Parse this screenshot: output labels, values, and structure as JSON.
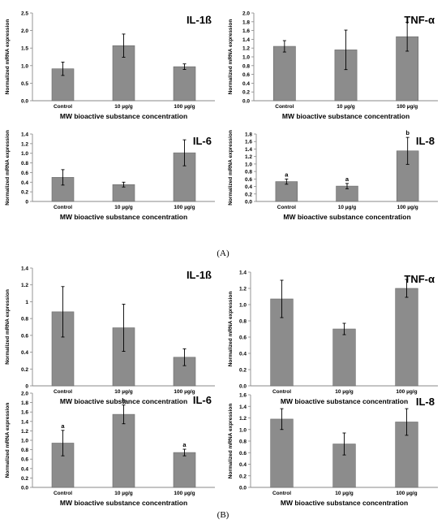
{
  "panel_labels": {
    "a": "(A)",
    "b": "(B)"
  },
  "colors": {
    "bar": "#8c8c8c",
    "bar_stroke": "#6a6a6a",
    "axis": "#888888",
    "text": "#000000"
  },
  "chart_data": [
    {
      "type": "bar",
      "panel": "A",
      "title": "IL-1ß",
      "ylabel": "Normalized mRNA expression",
      "xlabel": "MW bioactive substance concentration",
      "categories": [
        "Control",
        "10 µg/g",
        "100 µg/g"
      ],
      "values": [
        0.91,
        1.57,
        0.97
      ],
      "errors": [
        0.19,
        0.33,
        0.08
      ],
      "significance": [
        "",
        "",
        ""
      ],
      "ylim": [
        0,
        2.5
      ],
      "yticks": [
        "0.0",
        "0.5",
        "1.0",
        "1.5",
        "2.0",
        "2.5"
      ]
    },
    {
      "type": "bar",
      "panel": "A",
      "title": "TNF-α",
      "ylabel": "Normalized mRNA expression",
      "xlabel": "MW bioactive substance concentration",
      "categories": [
        "Control",
        "10 µg/g",
        "100 µg/g"
      ],
      "values": [
        1.24,
        1.16,
        1.46
      ],
      "errors": [
        0.13,
        0.45,
        0.33
      ],
      "significance": [
        "",
        "",
        ""
      ],
      "ylim": [
        0,
        2.0
      ],
      "yticks": [
        "0.0",
        "0.2",
        "0.4",
        "0.6",
        "0.8",
        "1.0",
        "1.2",
        "1.4",
        "1.6",
        "1.8",
        "2.0"
      ]
    },
    {
      "type": "bar",
      "panel": "A",
      "title": "IL-6",
      "ylabel": "Normalized mRNA expression",
      "xlabel": "MW bioactive substance concentration",
      "categories": [
        "Control",
        "10 µg/g",
        "100 µg/g"
      ],
      "values": [
        0.5,
        0.35,
        1.01
      ],
      "errors": [
        0.16,
        0.05,
        0.27
      ],
      "significance": [
        "",
        "",
        ""
      ],
      "ylim": [
        0,
        1.4
      ],
      "yticks": [
        "0",
        "0.2",
        "0.4",
        "0.6",
        "0.8",
        "1.0",
        "1.2",
        "1.4"
      ]
    },
    {
      "type": "bar",
      "panel": "A",
      "title": "IL-8",
      "ylabel": "Normalized mRNA expression",
      "xlabel": "MW bioactive substance concentration",
      "categories": [
        "Control",
        "10 µg/g",
        "100 µg/g"
      ],
      "values": [
        0.53,
        0.41,
        1.35
      ],
      "errors": [
        0.07,
        0.07,
        0.36
      ],
      "significance": [
        "a",
        "a",
        "b"
      ],
      "ylim": [
        0,
        1.8
      ],
      "yticks": [
        "0.0",
        "0.2",
        "0.4",
        "0.6",
        "0.8",
        "1.0",
        "1.2",
        "1.4",
        "1.6",
        "1.8"
      ]
    },
    {
      "type": "bar",
      "panel": "B",
      "title": "IL-1ß",
      "ylabel": "Normalized mRNA expression",
      "xlabel": "MW bioactive substance concentration",
      "categories": [
        "Control",
        "10 µg/g",
        "100 µg/g"
      ],
      "values": [
        0.88,
        0.69,
        0.34
      ],
      "errors": [
        0.3,
        0.28,
        0.1
      ],
      "significance": [
        "",
        "",
        ""
      ],
      "ylim": [
        0,
        1.4
      ],
      "yticks": [
        "0",
        "0.2",
        "0.4",
        "0.6",
        "0.8",
        "1",
        "1.2",
        "1.4"
      ]
    },
    {
      "type": "bar",
      "panel": "B",
      "title": "TNF-α",
      "ylabel": "Normalized mRNA expression",
      "xlabel": "MW bioactive substance concentration",
      "categories": [
        "Control",
        "10 µg/g",
        "100 µg/g"
      ],
      "values": [
        1.07,
        0.7,
        1.2
      ],
      "errors": [
        0.23,
        0.07,
        0.11
      ],
      "significance": [
        "",
        "",
        ""
      ],
      "ylim": [
        0,
        1.4
      ],
      "yticks": [
        "0.0",
        "0.2",
        "0.4",
        "0.6",
        "0.8",
        "1.0",
        "1.2",
        "1.4"
      ]
    },
    {
      "type": "bar",
      "panel": "B",
      "title": "IL-6",
      "ylabel": "Normalized mRNA expression",
      "xlabel": "MW bioactive substance concentration",
      "categories": [
        "Control",
        "10 µg/g",
        "100 µg/g"
      ],
      "values": [
        0.94,
        1.55,
        0.74
      ],
      "errors": [
        0.27,
        0.2,
        0.07
      ],
      "significance": [
        "a",
        "b",
        "a"
      ],
      "ylim": [
        0,
        2.0
      ],
      "yticks": [
        "0.0",
        "0.2",
        "0.4",
        "0.6",
        "0.8",
        "1.0",
        "1.2",
        "1.4",
        "1.6",
        "1.8",
        "2.0"
      ]
    },
    {
      "type": "bar",
      "panel": "B",
      "title": "IL-8",
      "ylabel": "Normalized mRNA expression",
      "xlabel": "MW bioactive substance concentration",
      "categories": [
        "Control",
        "10 µg/g",
        "100 µg/g"
      ],
      "values": [
        1.18,
        0.75,
        1.13
      ],
      "errors": [
        0.18,
        0.19,
        0.23
      ],
      "significance": [
        "",
        "",
        ""
      ],
      "ylim": [
        0,
        1.6
      ],
      "yticks": [
        "0.0",
        "0.2",
        "0.4",
        "0.6",
        "0.8",
        "1.0",
        "1.2",
        "1.4",
        "1.6"
      ]
    }
  ]
}
